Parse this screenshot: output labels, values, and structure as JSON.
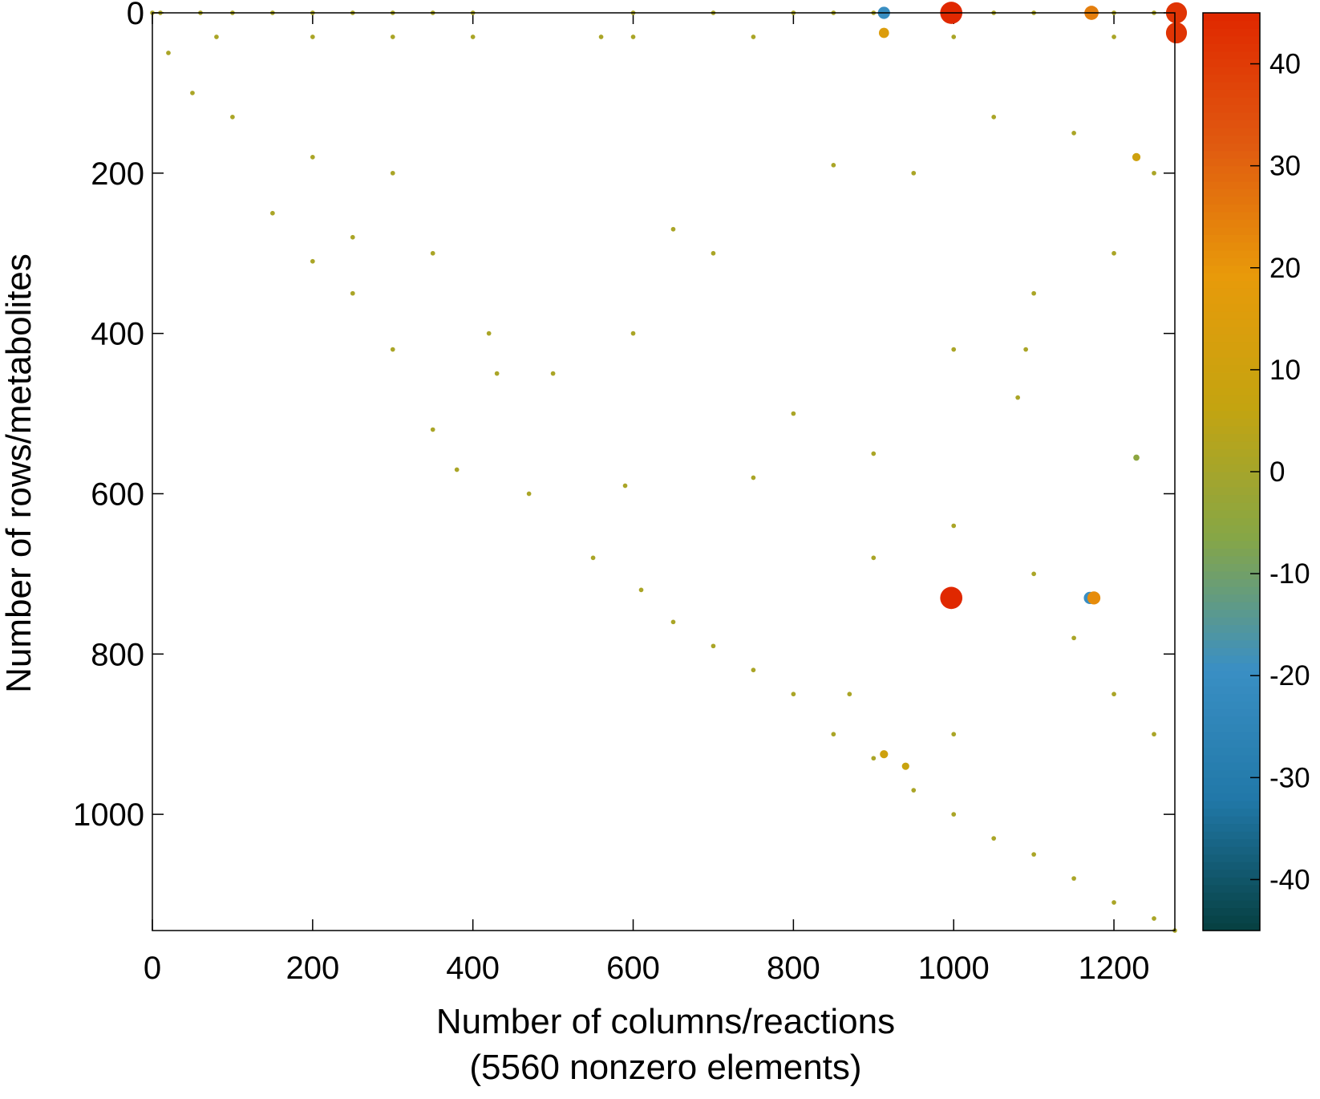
{
  "chart_data": {
    "type": "scatter",
    "xlabel": [
      "Number of columns/reactions",
      "(5560 nonzero elements)"
    ],
    "ylabel": "Number of rows/metabolites",
    "xlim": [
      0,
      1276
    ],
    "xticks": [
      0,
      200,
      400,
      600,
      800,
      1000,
      1200
    ],
    "ylim": [
      1145,
      0
    ],
    "yticks": [
      0,
      200,
      400,
      600,
      800,
      1000
    ],
    "clim": [
      -45,
      45
    ],
    "cticks": [
      -40,
      -30,
      -20,
      -10,
      0,
      10,
      20,
      30,
      40
    ],
    "colormap": [
      "#063f40",
      "#2178a8",
      "#3a8fc4",
      "#86a646",
      "#c4a410",
      "#e89a0a",
      "#e05a10",
      "#e02800"
    ],
    "x": [
      0,
      20,
      50,
      100,
      150,
      200,
      250,
      300,
      350,
      380,
      470,
      550,
      610,
      650,
      700,
      750,
      800,
      850,
      900,
      950,
      1000,
      1050,
      1100,
      1150,
      1200,
      1250,
      1276,
      10,
      60,
      100,
      150,
      200,
      250,
      300,
      350,
      400,
      600,
      700,
      800,
      850,
      900,
      1050,
      1100,
      1200,
      1250,
      913,
      913,
      997,
      1172,
      1278,
      1278,
      997,
      1170,
      1175,
      1228,
      913,
      1228,
      940,
      1000,
      1080,
      700,
      650,
      850,
      950,
      1100,
      1200,
      800,
      900,
      1000,
      1100,
      1150,
      1200,
      1250,
      1000,
      600,
      500,
      420,
      430,
      300,
      250,
      200,
      350,
      1050,
      1150,
      1250,
      560,
      600,
      750,
      1000,
      1200,
      80,
      200,
      300,
      400,
      590,
      900,
      750,
      870,
      1090
    ],
    "y": [
      0,
      50,
      100,
      130,
      250,
      310,
      350,
      420,
      520,
      570,
      600,
      680,
      720,
      760,
      790,
      820,
      850,
      900,
      930,
      970,
      1000,
      1030,
      1050,
      1080,
      1110,
      1130,
      1145,
      0,
      0,
      0,
      0,
      0,
      0,
      0,
      0,
      0,
      0,
      0,
      0,
      0,
      0,
      0,
      0,
      0,
      0,
      0,
      25,
      0,
      0,
      0,
      25,
      730,
      730,
      730,
      555,
      925,
      180,
      940,
      420,
      480,
      300,
      270,
      190,
      200,
      350,
      300,
      500,
      550,
      640,
      700,
      780,
      850,
      900,
      900,
      400,
      450,
      400,
      450,
      200,
      280,
      180,
      300,
      130,
      150,
      200,
      30,
      30,
      30,
      30,
      30,
      30,
      30,
      30,
      30,
      590,
      680,
      580,
      850,
      420
    ],
    "values": [
      1,
      1,
      1,
      1,
      1,
      1,
      1,
      1,
      1,
      1,
      1,
      1,
      1,
      1,
      1,
      1,
      1,
      1,
      1,
      1,
      1,
      1,
      1,
      1,
      1,
      1,
      1,
      1,
      1,
      1,
      1,
      1,
      1,
      1,
      1,
      1,
      1,
      1,
      1,
      1,
      1,
      1,
      1,
      1,
      1,
      -20,
      15,
      45,
      25,
      42,
      42,
      45,
      -20,
      22,
      -5,
      10,
      10,
      8,
      1,
      1,
      1,
      1,
      1,
      1,
      1,
      1,
      1,
      1,
      1,
      1,
      1,
      1,
      1,
      1,
      1,
      1,
      1,
      1,
      1,
      1,
      1,
      1,
      1,
      1,
      1,
      1,
      1,
      1,
      1,
      1,
      1,
      1,
      1,
      1,
      1,
      1,
      1,
      1,
      1
    ]
  }
}
